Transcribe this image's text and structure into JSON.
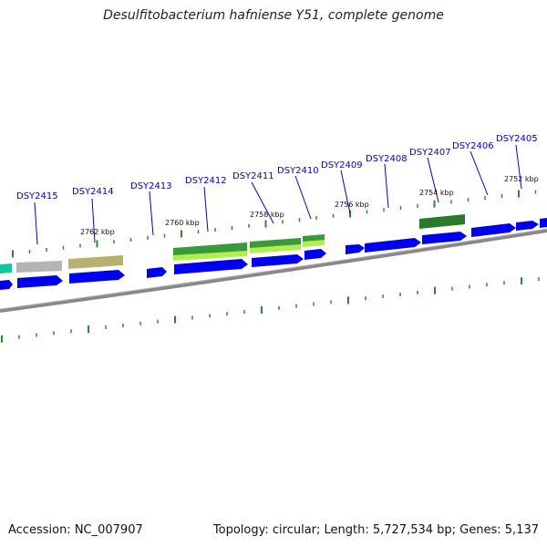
{
  "title": "Desulfitobacterium hafniense Y51, complete genome",
  "footer": {
    "accession": "Accession: NC_007907",
    "summary": "Topology: circular; Length: 5,727,534 bp; Genes: 5,137"
  },
  "gene_labels": [
    "DSY2415",
    "DSY2414",
    "DSY2413",
    "DSY2412",
    "DSY2411",
    "DSY2410",
    "DSY2409",
    "DSY2408",
    "DSY2407",
    "DSY2406",
    "DSY2405"
  ],
  "kbp_labels": [
    "2762 kbp",
    "2760 kbp",
    "2758 kbp",
    "2756 kbp",
    "2754 kbp",
    "2752 kbp"
  ],
  "colors": {
    "cds": "#0000ee",
    "gene_green": "#2a8a2a",
    "gene_lightgreen": "#aaee44",
    "gene_gray": "#b4b4b4",
    "gene_khaki": "#b8b070",
    "gene_teal": "#10c8a0",
    "backbone": "#808080",
    "tick": "#2a8a2a",
    "label": "#0000cc"
  }
}
